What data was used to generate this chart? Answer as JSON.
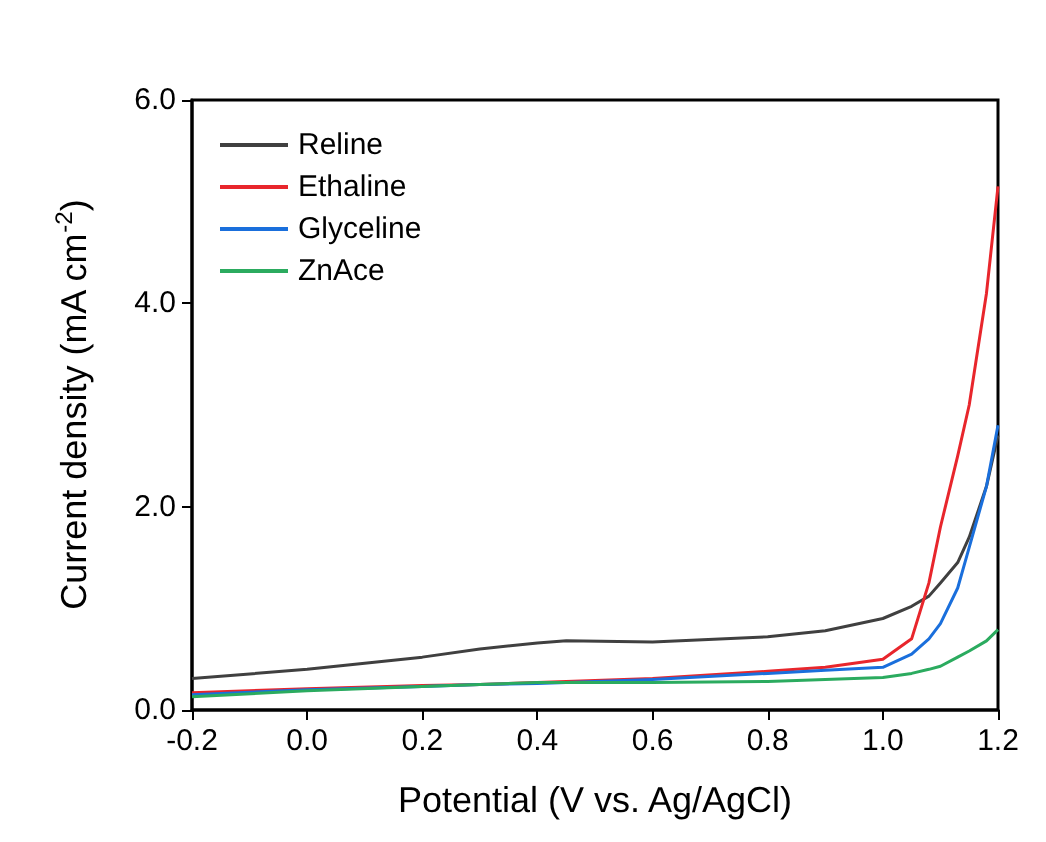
{
  "chart_data": {
    "type": "line",
    "xlabel": "Potential (V vs. Ag/AgCl)",
    "ylabel": "Current density (mA cm$^{-2}$)",
    "x": [
      -0.2,
      0.0,
      0.2,
      0.3,
      0.4,
      0.45,
      0.6,
      0.8,
      0.9,
      1.0,
      1.05,
      1.08,
      1.1,
      1.13,
      1.15,
      1.18,
      1.2
    ],
    "series": [
      {
        "name": "Reline",
        "color": "#404040",
        "values": [
          0.31,
          0.4,
          0.52,
          0.6,
          0.66,
          0.68,
          0.67,
          0.72,
          0.78,
          0.9,
          1.02,
          1.12,
          1.25,
          1.45,
          1.7,
          2.2,
          2.7
        ]
      },
      {
        "name": "Ethaline",
        "color": "#e8262c",
        "values": [
          0.17,
          0.21,
          0.24,
          0.25,
          0.27,
          0.28,
          0.31,
          0.38,
          0.42,
          0.5,
          0.7,
          1.25,
          1.8,
          2.5,
          3.0,
          4.1,
          5.15
        ]
      },
      {
        "name": "Glyceline",
        "color": "#1a6fdc",
        "values": [
          0.15,
          0.2,
          0.23,
          0.25,
          0.26,
          0.27,
          0.3,
          0.36,
          0.39,
          0.42,
          0.55,
          0.7,
          0.85,
          1.2,
          1.6,
          2.2,
          2.8
        ]
      },
      {
        "name": "ZnAce",
        "color": "#2bab5f",
        "values": [
          0.13,
          0.19,
          0.23,
          0.25,
          0.27,
          0.27,
          0.27,
          0.28,
          0.3,
          0.32,
          0.36,
          0.4,
          0.43,
          0.52,
          0.58,
          0.68,
          0.79
        ]
      }
    ],
    "xlim": [
      -0.2,
      1.2
    ],
    "xticks": [
      -0.2,
      {
        "value": 0,
        "label": "0.0"
      },
      0.2,
      0.4,
      0.6,
      0.8,
      {
        "value": 1,
        "label": "1.0"
      },
      1.2
    ],
    "ylim": [
      0,
      6
    ],
    "yticks": [
      {
        "value": 0,
        "label": "0.0"
      },
      {
        "value": 2,
        "label": "2.0"
      },
      {
        "value": 4,
        "label": "4.0"
      },
      {
        "value": 6,
        "label": "6.0"
      }
    ],
    "grid": false,
    "legend": "top left",
    "marker": "none",
    "line_style": "solid"
  }
}
